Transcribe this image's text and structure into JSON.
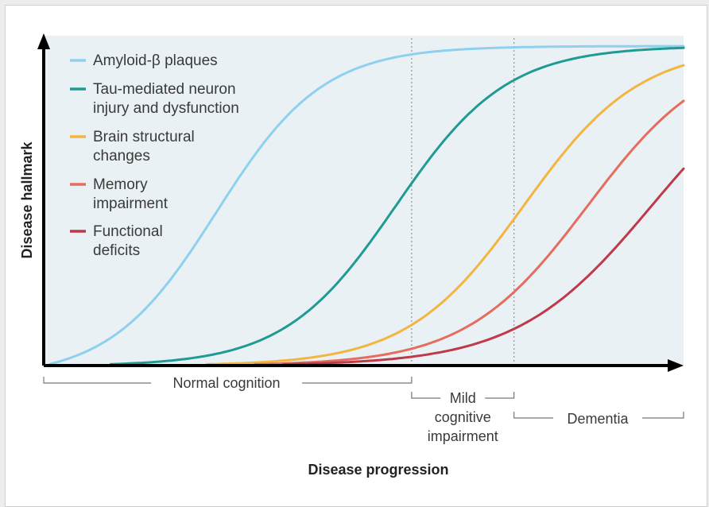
{
  "chart_data": {
    "type": "line",
    "xlabel": "Disease progression",
    "ylabel": "Disease hallmark",
    "colors": {
      "panel": "#e9f1f4",
      "axis": "#000000",
      "boundary": "#9a9a9a"
    },
    "series": [
      {
        "name": "Amyloid-β plaques",
        "color": "#8fd0ef",
        "midpoint": 0.27,
        "steepness": 12.0
      },
      {
        "name": "Tau-mediated neuron injury and dysfunction",
        "color": "#1f9a94",
        "midpoint": 0.55,
        "steepness": 11.5
      },
      {
        "name": "Brain structural changes",
        "color": "#f2b640",
        "midpoint": 0.75,
        "steepness": 11.0
      },
      {
        "name": "Memory impairment",
        "color": "#e66c5e",
        "midpoint": 0.85,
        "steepness": 10.5
      },
      {
        "name": "Functional deficits",
        "color": "#c0394a",
        "midpoint": 0.95,
        "steepness": 9.5
      }
    ],
    "legend": {
      "position": "top-left",
      "items": [
        {
          "lines": [
            "Amyloid-β plaques"
          ]
        },
        {
          "lines": [
            "Tau-mediated neuron",
            "injury and dysfunction"
          ]
        },
        {
          "lines": [
            "Brain structural",
            "changes"
          ]
        },
        {
          "lines": [
            "Memory",
            "impairment"
          ]
        },
        {
          "lines": [
            "Functional",
            "deficits"
          ]
        }
      ]
    },
    "phases": [
      {
        "lines": [
          "Normal cognition"
        ]
      },
      {
        "lines": [
          "Mild",
          "cognitive",
          "impairment"
        ]
      },
      {
        "lines": [
          "Dementia"
        ]
      }
    ],
    "xlim": [
      0,
      1
    ],
    "ylim": [
      0,
      1
    ],
    "phase_boundaries": [
      0.575,
      0.735
    ]
  }
}
